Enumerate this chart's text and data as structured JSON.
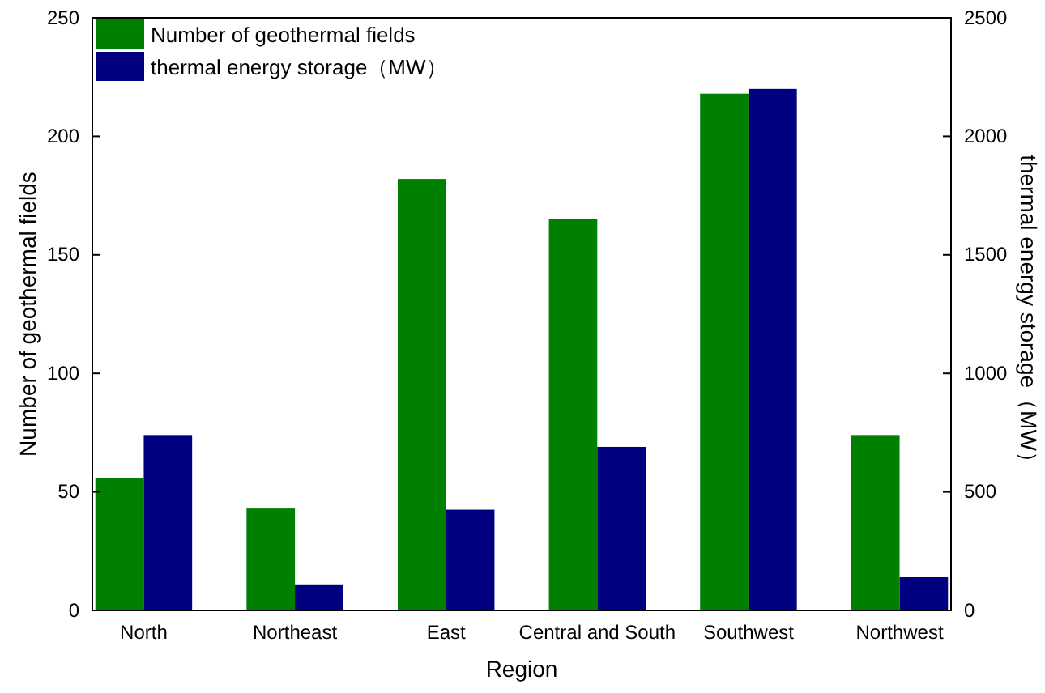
{
  "chart_data": {
    "type": "bar",
    "xlabel": "Region",
    "ylabel": "Number of geothermal fields",
    "y2label": "thermal energy storage（MW）",
    "categories": [
      "North",
      "Northeast",
      "East",
      "Central and South",
      "Southwest",
      "Northwest"
    ],
    "series": [
      {
        "name": "Number of geothermal fields",
        "color": "#008000",
        "values": [
          56,
          43,
          182,
          165,
          218,
          74
        ]
      },
      {
        "name": "thermal energy storage（MW）",
        "color": "#000080",
        "axis": "y2",
        "values": [
          740,
          110,
          425,
          690,
          2200,
          140
        ]
      }
    ],
    "ylim": [
      0,
      250
    ],
    "yticks": [
      0,
      50,
      100,
      150,
      200,
      250
    ],
    "y2lim": [
      0,
      2500
    ],
    "y2ticks": [
      0,
      500,
      1000,
      1500,
      2000,
      2500
    ],
    "legend": "top left",
    "grid": false
  }
}
